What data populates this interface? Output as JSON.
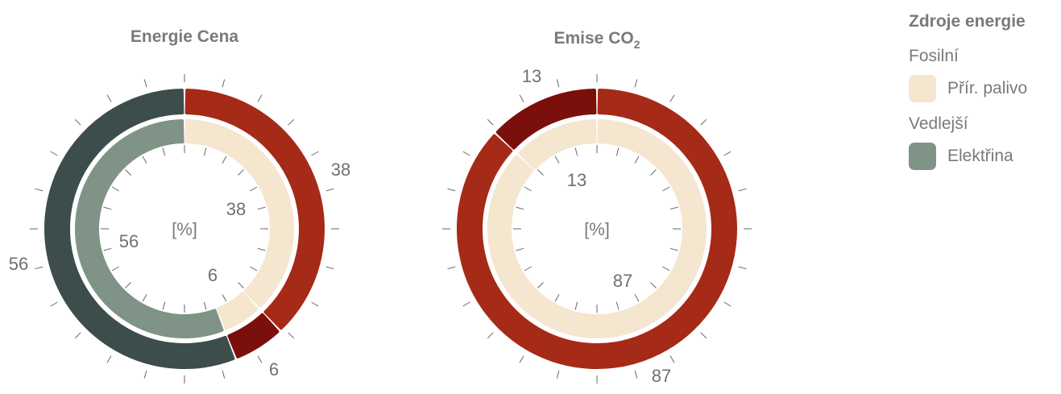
{
  "chart_data": [
    {
      "type": "donut",
      "title": "Energie Cena",
      "center_label": "[%]",
      "outer_ring": [
        {
          "name": "fossil_main",
          "value": 38,
          "color": "#a52a17"
        },
        {
          "name": "fossil_dark",
          "value": 6,
          "color": "#7a0f0b"
        },
        {
          "name": "electricity_dark",
          "value": 56,
          "color": "#3c4d4b"
        }
      ],
      "inner_ring": [
        {
          "name": "Přír. palivo A",
          "value": 38,
          "color": "#f5e6cf"
        },
        {
          "name": "Přír. palivo B",
          "value": 6,
          "color": "#f5e6cf"
        },
        {
          "name": "Elektřina",
          "value": 56,
          "color": "#7f9386"
        }
      ],
      "labels": {
        "outer_a": "38",
        "outer_b": "6",
        "outer_c": "56",
        "inner_a": "38",
        "inner_b": "6",
        "inner_c": "56"
      }
    },
    {
      "type": "donut",
      "title": "Emise CO",
      "title_subscript": "2",
      "center_label": "[%]",
      "outer_ring": [
        {
          "name": "fossil_main",
          "value": 87,
          "color": "#a52a17"
        },
        {
          "name": "fossil_dark",
          "value": 13,
          "color": "#7a0f0b"
        }
      ],
      "inner_ring": [
        {
          "name": "Přír. palivo A",
          "value": 87,
          "color": "#f5e6cf"
        },
        {
          "name": "Přír. palivo B",
          "value": 13,
          "color": "#f5e6cf"
        }
      ],
      "labels": {
        "outer_a": "87",
        "outer_b": "13",
        "inner_a": "87",
        "inner_b": "13"
      }
    }
  ],
  "legend": {
    "title": "Zdroje energie",
    "groups": [
      {
        "label": "Fosilní",
        "items": [
          {
            "label": "Přír. palivo",
            "color": "#f5e6cf"
          }
        ]
      },
      {
        "label": "Vedlejší",
        "items": [
          {
            "label": "Elektřina",
            "color": "#7f9386"
          }
        ]
      }
    ]
  }
}
